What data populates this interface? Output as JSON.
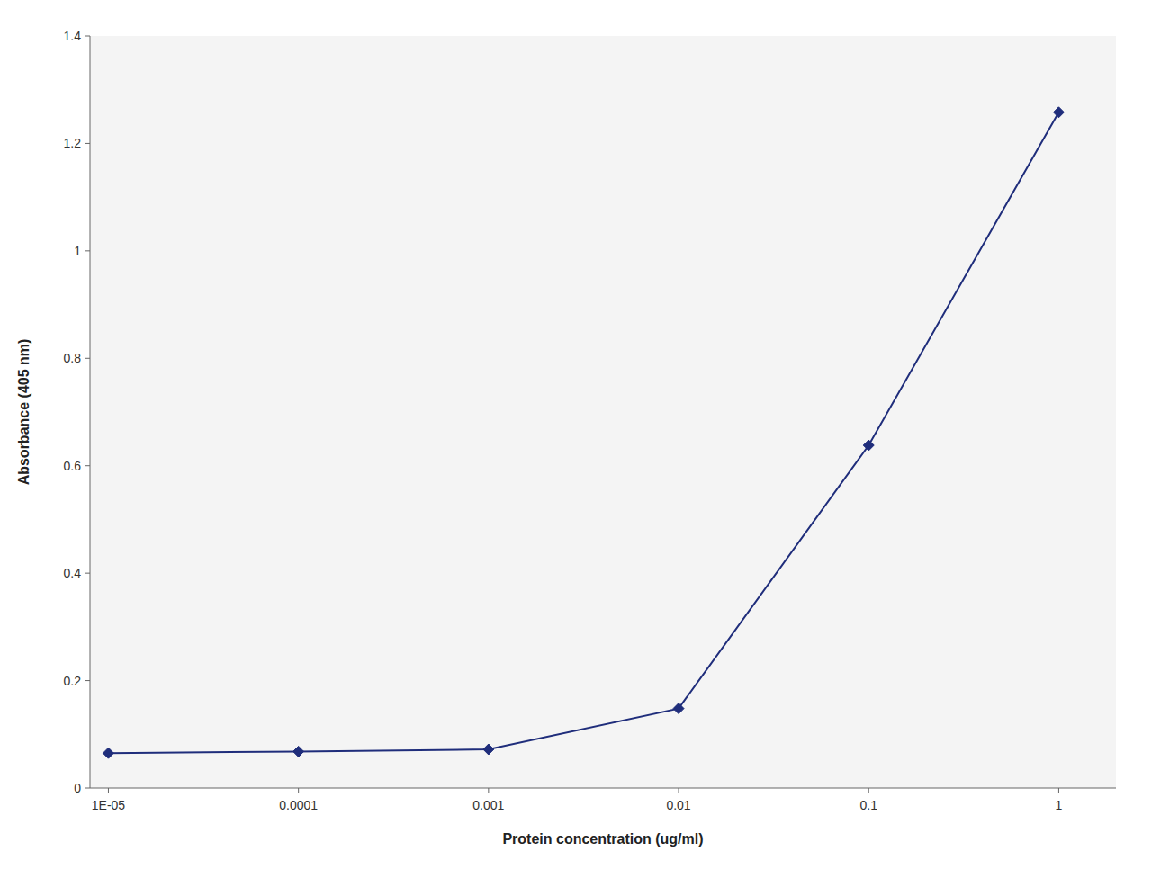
{
  "chart_data": {
    "type": "line",
    "x": [
      1e-05,
      0.0001,
      0.001,
      0.01,
      0.1,
      1
    ],
    "values": [
      0.065,
      0.068,
      0.072,
      0.148,
      0.638,
      1.258
    ],
    "xlabel": "Protein concentration (ug/ml)",
    "ylabel": "Absorbance (405 nm)",
    "log": "x",
    "xlim": [
      8e-06,
      2.0
    ],
    "xticks": [
      {
        "value": 1e-05,
        "label": "1E-05"
      },
      0.0001,
      0.001,
      0.01,
      0.1,
      1
    ],
    "ylim": [
      0,
      1.4
    ],
    "yticks": [
      0,
      0.2,
      0.4,
      0.6,
      0.8,
      1,
      1.2,
      1.4
    ],
    "color": "#1F2D7B",
    "marker": "diamond",
    "grid": false
  }
}
